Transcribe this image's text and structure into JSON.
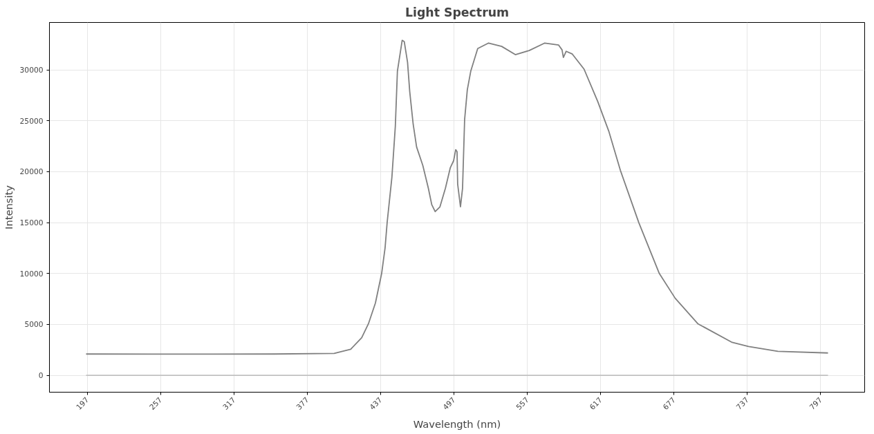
{
  "chart_data": {
    "type": "line",
    "title": "Light Spectrum",
    "xlabel": "Wavelength (nm)",
    "ylabel": "Intensity",
    "xlim": [
      166,
      833
    ],
    "ylim": [
      -1650,
      34650
    ],
    "xticks": [
      197,
      257,
      317,
      377,
      437,
      497,
      557,
      617,
      677,
      737,
      797
    ],
    "yticks": [
      0,
      5000,
      10000,
      15000,
      20000,
      25000,
      30000
    ],
    "grid": true,
    "marker": "none",
    "line_style": "solid",
    "series": [
      {
        "color": "#808080",
        "x": [
          196,
          250,
          300,
          350,
          399,
          412.5,
          421.5,
          427,
          432.7,
          437.8,
          440.6,
          442.3,
          446.2,
          449,
          450.7,
          454.6,
          456.3,
          459,
          460.8,
          463.6,
          466.4,
          471.5,
          476,
          478.8,
          481.6,
          485.5,
          490,
          494,
          496.7,
          498.4,
          499.5,
          500,
          502.3,
          504,
          505.7,
          507.9,
          510.7,
          516.4,
          525.3,
          536,
          547.2,
          558.5,
          571.3,
          582.6,
          585.4,
          586.5,
          588.8,
          593.8,
          603.4,
          614.6,
          623.6,
          633.1,
          648.2,
          665,
          678,
          696.5,
          724.6,
          738,
          762,
          803
        ],
        "values": [
          2100,
          2090,
          2090,
          2100,
          2160,
          2570,
          3700,
          5070,
          7100,
          10000,
          12500,
          15000,
          19460,
          24460,
          29860,
          32900,
          32770,
          30740,
          27840,
          24660,
          22430,
          20610,
          18380,
          16760,
          16080,
          16550,
          18380,
          20400,
          21080,
          22160,
          21960,
          18780,
          16550,
          18380,
          25130,
          28040,
          29860,
          32090,
          32630,
          32300,
          31490,
          31890,
          32630,
          32430,
          31960,
          31220,
          31820,
          31550,
          30070,
          26890,
          23990,
          20140,
          15000,
          10000,
          7570,
          5070,
          3240,
          2840,
          2360,
          2200
        ]
      },
      {
        "color": "#c0c0c0",
        "x": [
          196,
          803
        ],
        "values": [
          0,
          0
        ]
      }
    ]
  }
}
